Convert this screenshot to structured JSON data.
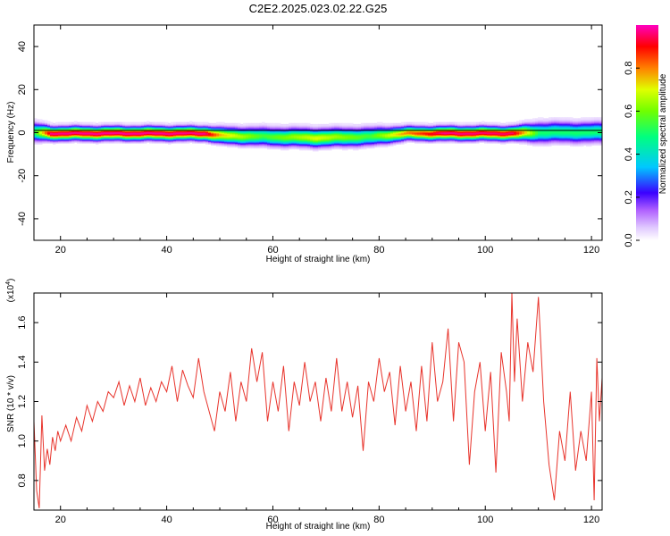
{
  "title": "C2E2.2025.023.02.22.G25",
  "chart_data": [
    {
      "type": "heatmap",
      "xlabel": "Height of straight line (km)",
      "ylabel": "Frequency (Hz)",
      "xlim": [
        15,
        122
      ],
      "ylim": [
        -50,
        50
      ],
      "xticks": [
        20,
        40,
        60,
        80,
        100,
        120
      ],
      "yticks": [
        -40,
        -20,
        0,
        20,
        40
      ],
      "tick_labels_x": [
        "20",
        "40",
        "60",
        "80",
        "100",
        "120"
      ],
      "tick_labels_y": [
        "-40",
        "-20",
        "0",
        "20",
        "40"
      ],
      "center_frequency_hz": 0,
      "band_profile": [
        {
          "x": 15,
          "center": 0.5,
          "width": 4.0,
          "peak": 0.55
        },
        {
          "x": 18,
          "center": 0.0,
          "width": 3.0,
          "peak": 0.97
        },
        {
          "x": 30,
          "center": 0.0,
          "width": 3.0,
          "peak": 0.98
        },
        {
          "x": 47,
          "center": 0.0,
          "width": 3.0,
          "peak": 0.97
        },
        {
          "x": 50,
          "center": -1.0,
          "width": 3.5,
          "peak": 0.75
        },
        {
          "x": 58,
          "center": -1.5,
          "width": 4.0,
          "peak": 0.55
        },
        {
          "x": 68,
          "center": -2.0,
          "width": 4.0,
          "peak": 0.7
        },
        {
          "x": 78,
          "center": -1.5,
          "width": 4.0,
          "peak": 0.55
        },
        {
          "x": 85,
          "center": 0.0,
          "width": 3.0,
          "peak": 0.8
        },
        {
          "x": 92,
          "center": 0.0,
          "width": 3.0,
          "peak": 0.97
        },
        {
          "x": 105,
          "center": 0.0,
          "width": 3.0,
          "peak": 0.95
        },
        {
          "x": 110,
          "center": 0.5,
          "width": 4.5,
          "peak": 0.5
        },
        {
          "x": 122,
          "center": 0.5,
          "width": 4.5,
          "peak": 0.5
        }
      ]
    },
    {
      "type": "line",
      "xlabel": "Height of straight line (km)",
      "ylabel": "SNR (10 * v/v)",
      "y_multiplier": "(x10",
      "y_multiplier_exp": "4",
      "y_multiplier_close": ")",
      "xlim": [
        15,
        122
      ],
      "ylim": [
        0.65,
        1.75
      ],
      "xticks": [
        20,
        40,
        60,
        80,
        100,
        120
      ],
      "yticks": [
        0.8,
        1.0,
        1.2,
        1.4,
        1.6
      ],
      "tick_labels_x": [
        "20",
        "40",
        "60",
        "80",
        "100",
        "120"
      ],
      "tick_labels_y": [
        "0.8",
        "1.0",
        "1.2",
        "1.4",
        "1.6"
      ],
      "series": [
        {
          "name": "SNR",
          "color": "#e8342c",
          "x": [
            15,
            15.5,
            16,
            16.5,
            17,
            17.5,
            18,
            18.5,
            19,
            19.5,
            20,
            21,
            22,
            23,
            24,
            25,
            26,
            27,
            28,
            29,
            30,
            31,
            32,
            33,
            34,
            35,
            36,
            37,
            38,
            39,
            40,
            41,
            42,
            43,
            44,
            45,
            46,
            47,
            48,
            49,
            50,
            51,
            52,
            53,
            54,
            55,
            56,
            57,
            58,
            59,
            60,
            61,
            62,
            63,
            64,
            65,
            66,
            67,
            68,
            69,
            70,
            71,
            72,
            73,
            74,
            75,
            76,
            77,
            78,
            79,
            80,
            81,
            82,
            83,
            84,
            85,
            86,
            87,
            88,
            89,
            90,
            91,
            92,
            93,
            94,
            95,
            96,
            97,
            98,
            99,
            100,
            101,
            102,
            103,
            104,
            104.5,
            105,
            105.5,
            106,
            107,
            108,
            109,
            110,
            111,
            112,
            113,
            114,
            115,
            116,
            117,
            118,
            119,
            120,
            120.5,
            121,
            121.5,
            122
          ],
          "y": [
            1.1,
            0.75,
            0.66,
            1.13,
            0.85,
            0.96,
            0.88,
            1.02,
            0.95,
            1.05,
            1.0,
            1.08,
            1.0,
            1.12,
            1.05,
            1.18,
            1.1,
            1.2,
            1.15,
            1.25,
            1.22,
            1.3,
            1.18,
            1.28,
            1.2,
            1.32,
            1.18,
            1.27,
            1.2,
            1.3,
            1.25,
            1.38,
            1.2,
            1.36,
            1.28,
            1.22,
            1.42,
            1.25,
            1.15,
            1.05,
            1.25,
            1.15,
            1.35,
            1.1,
            1.3,
            1.2,
            1.47,
            1.3,
            1.45,
            1.1,
            1.3,
            1.15,
            1.38,
            1.05,
            1.3,
            1.18,
            1.4,
            1.2,
            1.3,
            1.1,
            1.32,
            1.15,
            1.42,
            1.15,
            1.3,
            1.12,
            1.28,
            0.95,
            1.3,
            1.2,
            1.42,
            1.25,
            1.35,
            1.08,
            1.38,
            1.15,
            1.3,
            1.05,
            1.38,
            1.1,
            1.5,
            1.2,
            1.3,
            1.57,
            1.1,
            1.5,
            1.4,
            0.88,
            1.25,
            1.4,
            1.05,
            1.35,
            0.84,
            1.45,
            1.25,
            1.1,
            1.75,
            1.3,
            1.62,
            1.2,
            1.5,
            1.35,
            1.73,
            1.2,
            0.88,
            0.7,
            1.05,
            0.9,
            1.25,
            0.85,
            1.05,
            0.9,
            1.25,
            0.7,
            1.42,
            1.1,
            1.32
          ]
        }
      ]
    }
  ],
  "colorbar": {
    "label": "Normalized spectral amplitude",
    "range": [
      0,
      1
    ],
    "ticks": [
      "0.0",
      "0.2",
      "0.4",
      "0.6",
      "0.8"
    ],
    "tick_values": [
      0.0,
      0.2,
      0.4,
      0.6,
      0.8
    ],
    "colors": [
      "#ffffff",
      "#e0c8ff",
      "#b060ff",
      "#3b00ff",
      "#00c8ff",
      "#00ff80",
      "#d0ff00",
      "#ff8000",
      "#ff0000",
      "#ff00c0"
    ]
  }
}
